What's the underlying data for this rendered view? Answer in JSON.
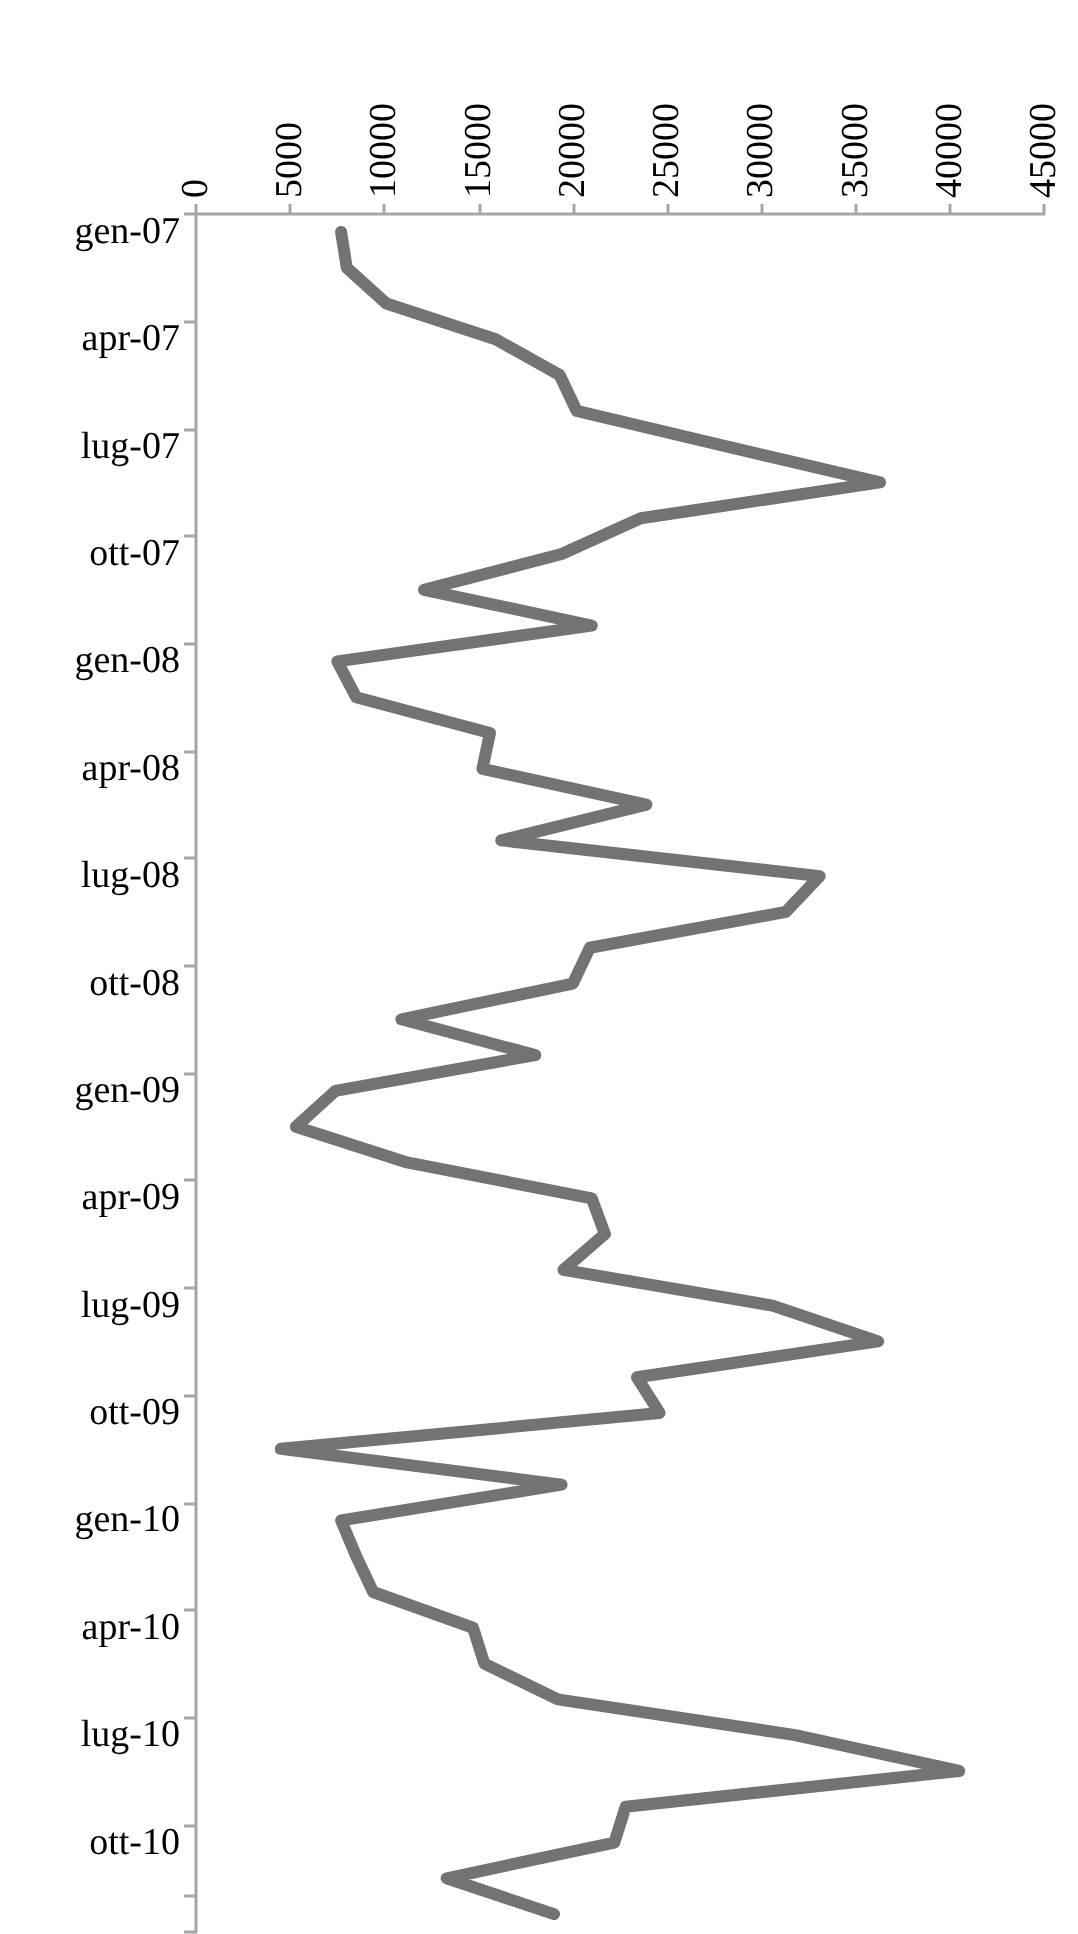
{
  "chart_data": {
    "type": "line",
    "orientation": "horizontal",
    "categories": [
      "gen-07",
      null,
      null,
      "apr-07",
      null,
      null,
      "lug-07",
      null,
      null,
      "ott-07",
      null,
      null,
      "gen-08",
      null,
      null,
      "apr-08",
      null,
      null,
      "lug-08",
      null,
      null,
      "ott-08",
      null,
      null,
      "gen-09",
      null,
      null,
      "apr-09",
      null,
      null,
      "lug-09",
      null,
      null,
      "ott-09",
      null,
      null,
      "gen-10",
      null,
      null,
      "apr-10",
      null,
      null,
      "lug-10",
      null,
      null,
      "ott-10",
      null,
      null
    ],
    "series": [
      {
        "color": "#737373",
        "values": [
          7700,
          8000,
          10100,
          15900,
          19300,
          20200,
          28200,
          36300,
          23600,
          19400,
          12100,
          21000,
          7500,
          8500,
          15600,
          15200,
          23900,
          16200,
          33100,
          31300,
          20900,
          20000,
          10900,
          18000,
          7400,
          5300,
          11200,
          21000,
          21700,
          19500,
          30600,
          36200,
          23400,
          24600,
          4500,
          19400,
          7700,
          8500,
          9400,
          14700,
          15300,
          19200,
          31800,
          40500,
          22800,
          22200,
          13300,
          19000
        ]
      }
    ],
    "xlim": [
      0,
      45000
    ],
    "xticks": [
      0,
      5000,
      10000,
      15000,
      20000,
      25000,
      30000,
      35000,
      40000,
      45000
    ],
    "grid": false,
    "marker": "none",
    "line_style": "solid"
  }
}
